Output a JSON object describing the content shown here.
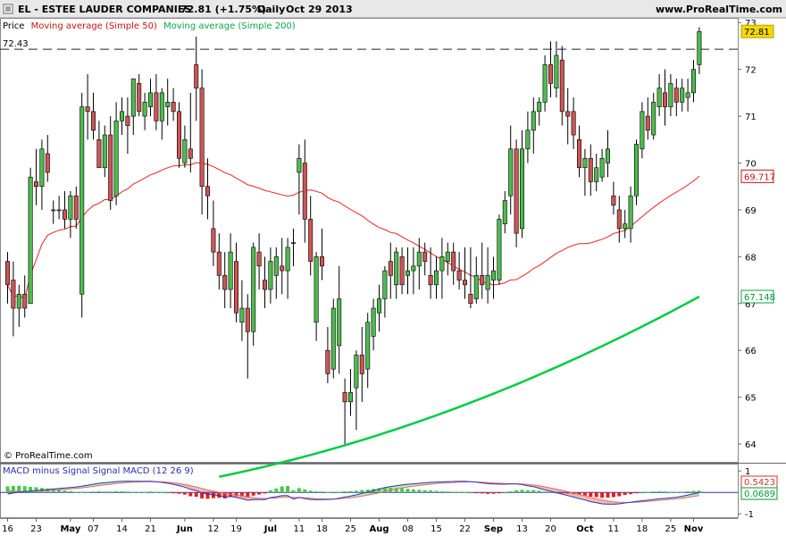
{
  "header": {
    "title": "EL - ESTEE LAUDER COMPANIES",
    "last_price_change": "72.81 (+1.75%)",
    "period": "Daily",
    "date": "Oct 29 2013",
    "site": "www.ProRealTime.com"
  },
  "legend": {
    "price": "Price",
    "ma50": "Moving average (Simple 50)",
    "ma200": "Moving average (Simple 200)"
  },
  "copyright": "© ProRealTime.com",
  "colors": {
    "up": "#4dbb4d",
    "down": "#cc5555",
    "ma50": "#ee2222",
    "ma200": "#00cc44",
    "macd_line": "#3333bb",
    "signal_line": "#e07070",
    "macd_text": "#2b2bb8",
    "hist_pos": "#44cc44",
    "hist_neg": "#dd2222",
    "fill_pos": "#b8e8b0",
    "fill_neg": "#f0b8b0",
    "dashed_line": "#222222",
    "last_price_bg": "#f2d800"
  },
  "chart_data": [
    {
      "type": "candlestick",
      "ylim": [
        63.6,
        73.1
      ],
      "yticks": [
        64,
        65,
        66,
        67,
        68,
        69,
        70,
        71,
        72,
        73
      ],
      "date_labels": [
        "16",
        "23",
        "May",
        "07",
        "14",
        "21",
        "Jun",
        "12",
        "19",
        "Jul",
        "11",
        "18",
        "25",
        "Aug",
        "08",
        "15",
        "22",
        "Sep",
        "13",
        "20",
        "Oct",
        "11",
        "18",
        "25",
        "Nov"
      ],
      "date_label_bars": [
        0,
        5,
        11,
        15,
        20,
        25,
        31,
        36,
        40,
        46,
        51,
        55,
        60,
        65,
        70,
        75,
        80,
        85,
        90,
        95,
        101,
        106,
        111,
        116,
        120
      ],
      "reference_line": {
        "value": 72.43,
        "label": "72.43"
      },
      "last_price_label": "72.81",
      "ma50_label": "69.717",
      "ma200_label": "67.148",
      "ohlc": [
        [
          67.9,
          68.1,
          67.0,
          67.4
        ],
        [
          67.5,
          67.9,
          66.3,
          66.9
        ],
        [
          66.9,
          67.4,
          66.5,
          67.2
        ],
        [
          67.2,
          67.6,
          66.7,
          66.9
        ],
        [
          67.0,
          69.9,
          67.0,
          69.7
        ],
        [
          69.6,
          70.3,
          69.1,
          69.5
        ],
        [
          69.5,
          70.5,
          69.0,
          70.3
        ],
        [
          70.2,
          70.6,
          69.6,
          69.8
        ],
        [
          69.0,
          69.2,
          68.7,
          69.0
        ],
        [
          69.0,
          69.3,
          68.8,
          69.0
        ],
        [
          69.0,
          69.4,
          68.6,
          68.8
        ],
        [
          68.8,
          69.4,
          68.4,
          69.3
        ],
        [
          69.3,
          69.5,
          68.6,
          68.8
        ],
        [
          67.2,
          71.5,
          66.7,
          71.2
        ],
        [
          71.2,
          71.9,
          70.5,
          71.1
        ],
        [
          71.1,
          71.5,
          70.5,
          70.7
        ],
        [
          70.5,
          70.9,
          69.9,
          69.9
        ],
        [
          69.9,
          70.8,
          69.7,
          70.6
        ],
        [
          70.6,
          71.0,
          69.0,
          69.2
        ],
        [
          69.3,
          71.3,
          69.1,
          70.9
        ],
        [
          70.9,
          71.4,
          70.6,
          71.1
        ],
        [
          71.0,
          71.4,
          70.2,
          70.8
        ],
        [
          71.0,
          71.8,
          70.6,
          71.8
        ],
        [
          71.7,
          71.9,
          71.0,
          71.1
        ],
        [
          71.0,
          71.5,
          70.7,
          71.3
        ],
        [
          71.2,
          71.8,
          71.0,
          71.5
        ],
        [
          71.5,
          71.9,
          70.7,
          70.9
        ],
        [
          70.9,
          71.6,
          70.5,
          71.5
        ],
        [
          71.2,
          71.8,
          70.8,
          71.3
        ],
        [
          71.3,
          71.6,
          70.9,
          71.1
        ],
        [
          71.1,
          71.3,
          69.9,
          70.1
        ],
        [
          70.0,
          70.8,
          69.9,
          70.5
        ],
        [
          70.3,
          71.5,
          69.8,
          70.1
        ],
        [
          72.1,
          72.7,
          70.9,
          71.6
        ],
        [
          71.6,
          72.0,
          68.9,
          69.5
        ],
        [
          69.5,
          70.1,
          68.8,
          69.3
        ],
        [
          68.6,
          69.2,
          67.8,
          68.1
        ],
        [
          68.1,
          68.5,
          67.3,
          67.6
        ],
        [
          67.6,
          68.1,
          66.9,
          67.3
        ],
        [
          67.3,
          68.5,
          66.9,
          68.1
        ],
        [
          67.9,
          68.3,
          66.6,
          66.8
        ],
        [
          66.6,
          67.5,
          66.2,
          66.9
        ],
        [
          66.9,
          67.2,
          65.4,
          66.4
        ],
        [
          66.4,
          68.3,
          66.1,
          68.2
        ],
        [
          68.1,
          68.5,
          67.3,
          67.8
        ],
        [
          67.5,
          68.0,
          66.9,
          67.3
        ],
        [
          67.3,
          68.2,
          67.0,
          67.9
        ],
        [
          67.6,
          68.2,
          67.1,
          68.0
        ],
        [
          67.8,
          68.4,
          67.2,
          67.7
        ],
        [
          67.7,
          68.4,
          67.1,
          68.2
        ],
        [
          68.3,
          68.6,
          67.8,
          68.3
        ],
        [
          69.8,
          70.4,
          68.9,
          70.1
        ],
        [
          70.0,
          70.5,
          68.3,
          68.8
        ],
        [
          68.8,
          69.3,
          67.6,
          67.9
        ],
        [
          66.6,
          68.1,
          66.2,
          68.0
        ],
        [
          68.0,
          68.6,
          67.5,
          67.8
        ],
        [
          66.0,
          66.5,
          65.3,
          65.5
        ],
        [
          65.6,
          67.1,
          65.4,
          66.9
        ],
        [
          66.1,
          67.8,
          65.5,
          67.1
        ],
        [
          65.1,
          65.4,
          64.0,
          64.9
        ],
        [
          64.9,
          65.6,
          64.6,
          65.1
        ],
        [
          65.2,
          66.0,
          64.3,
          65.9
        ],
        [
          65.9,
          66.5,
          64.9,
          65.5
        ],
        [
          65.6,
          66.8,
          65.2,
          66.6
        ],
        [
          66.3,
          67.1,
          66.0,
          66.9
        ],
        [
          66.8,
          67.4,
          66.4,
          67.1
        ],
        [
          67.1,
          67.8,
          66.7,
          67.7
        ],
        [
          67.9,
          68.3,
          67.1,
          67.6
        ],
        [
          67.4,
          68.2,
          67.1,
          68.1
        ],
        [
          68.0,
          68.2,
          67.2,
          67.4
        ],
        [
          67.6,
          68.2,
          67.2,
          67.7
        ],
        [
          67.7,
          68.2,
          67.2,
          67.8
        ],
        [
          67.8,
          68.4,
          67.3,
          68.1
        ],
        [
          68.1,
          68.3,
          67.6,
          67.9
        ],
        [
          67.6,
          68.2,
          67.1,
          67.4
        ],
        [
          67.4,
          68.0,
          67.1,
          67.7
        ],
        [
          67.7,
          68.4,
          67.1,
          68.0
        ],
        [
          67.9,
          68.3,
          67.6,
          68.1
        ],
        [
          68.1,
          68.3,
          67.4,
          67.7
        ],
        [
          67.7,
          68.1,
          67.3,
          67.5
        ],
        [
          67.5,
          68.2,
          67.1,
          67.4
        ],
        [
          67.2,
          68.2,
          66.9,
          67.0
        ],
        [
          67.1,
          68.0,
          67.0,
          67.6
        ],
        [
          67.6,
          68.3,
          67.1,
          67.4
        ],
        [
          67.3,
          68.2,
          67.0,
          67.6
        ],
        [
          67.5,
          68.0,
          67.1,
          67.7
        ],
        [
          67.5,
          68.9,
          67.4,
          68.8
        ],
        [
          68.7,
          69.4,
          68.5,
          69.2
        ],
        [
          69.3,
          70.8,
          68.9,
          70.3
        ],
        [
          70.3,
          70.5,
          68.2,
          68.5
        ],
        [
          68.6,
          70.7,
          68.4,
          70.3
        ],
        [
          70.3,
          71.1,
          70.0,
          70.7
        ],
        [
          70.7,
          71.4,
          70.2,
          71.1
        ],
        [
          71.1,
          71.4,
          70.8,
          71.3
        ],
        [
          71.3,
          72.3,
          71.1,
          72.1
        ],
        [
          72.1,
          72.6,
          71.4,
          71.7
        ],
        [
          71.6,
          72.6,
          71.4,
          72.3
        ],
        [
          72.2,
          72.5,
          70.8,
          71.1
        ],
        [
          71.1,
          71.6,
          70.4,
          71.0
        ],
        [
          71.1,
          71.4,
          70.3,
          70.6
        ],
        [
          70.5,
          70.8,
          69.7,
          69.9
        ],
        [
          69.9,
          70.3,
          69.3,
          70.1
        ],
        [
          70.1,
          70.4,
          69.3,
          69.6
        ],
        [
          69.6,
          70.2,
          69.4,
          69.9
        ],
        [
          69.7,
          70.3,
          69.6,
          70.1
        ],
        [
          70.0,
          70.7,
          69.7,
          70.3
        ],
        [
          69.3,
          69.6,
          68.9,
          69.1
        ],
        [
          69.0,
          69.3,
          68.3,
          68.6
        ],
        [
          68.6,
          69.0,
          68.4,
          68.7
        ],
        [
          68.6,
          69.5,
          68.3,
          69.3
        ],
        [
          69.3,
          70.5,
          69.1,
          70.4
        ],
        [
          70.3,
          71.3,
          70.1,
          71.1
        ],
        [
          71.0,
          71.4,
          70.5,
          70.7
        ],
        [
          70.6,
          71.5,
          70.5,
          71.3
        ],
        [
          71.2,
          71.9,
          71.0,
          71.6
        ],
        [
          71.5,
          72.0,
          70.8,
          71.2
        ],
        [
          71.2,
          71.9,
          71.0,
          71.7
        ],
        [
          71.6,
          71.8,
          71.0,
          71.3
        ],
        [
          71.3,
          71.8,
          71.1,
          71.6
        ],
        [
          71.4,
          71.8,
          71.1,
          71.5
        ],
        [
          71.5,
          72.2,
          71.3,
          72.0
        ],
        [
          72.1,
          72.9,
          71.9,
          72.81
        ]
      ]
    },
    {
      "type": "line",
      "title": "MACD minus Signal Signal MACD (12 26 9)",
      "ylim": [
        -1.2,
        1.3
      ],
      "yticks": [
        1,
        -1
      ],
      "macd_value_label": "0.5423",
      "signal_value_label": "0.0689",
      "histogram": [
        0.28,
        0.3,
        0.31,
        0.29,
        0.26,
        0.24,
        0.21,
        0.18,
        0.15,
        0.12,
        0.09,
        0.06,
        0.03,
        0.02,
        0.03,
        0.04,
        0.05,
        0.04,
        0.04,
        0.05,
        0.05,
        0.04,
        0.03,
        0.02,
        0.03,
        0.04,
        0.03,
        0.02,
        0.0,
        -0.02,
        -0.06,
        -0.1,
        -0.18,
        -0.2,
        -0.28,
        -0.3,
        -0.27,
        -0.25,
        -0.28,
        -0.18,
        -0.18,
        -0.19,
        -0.23,
        -0.15,
        -0.1,
        -0.05,
        0.1,
        0.18,
        0.28,
        0.3,
        0.1,
        0.2,
        0.14,
        0.08,
        0.05,
        0.04,
        0.02,
        0.0,
        0.03,
        0.05,
        0.06,
        0.08,
        0.11,
        0.13,
        0.16,
        0.19,
        0.21,
        0.21,
        0.2,
        0.19,
        0.17,
        0.14,
        0.12,
        0.1,
        0.09,
        0.07,
        0.05,
        0.04,
        0.03,
        0.03,
        0.02,
        0.0,
        -0.02,
        -0.05,
        -0.07,
        -0.06,
        -0.04,
        0.0,
        0.05,
        0.1,
        0.12,
        0.1,
        0.11,
        0.08,
        0.04,
        0.02,
        0.0,
        -0.02,
        -0.05,
        -0.08,
        -0.12,
        -0.15,
        -0.2,
        -0.22,
        -0.25,
        -0.24,
        -0.22,
        -0.18,
        -0.12,
        -0.08,
        -0.03,
        0.0,
        0.02,
        0.04,
        0.05,
        0.04,
        0.03,
        0.02,
        0.03,
        0.05,
        0.07,
        0.08
      ]
    }
  ]
}
